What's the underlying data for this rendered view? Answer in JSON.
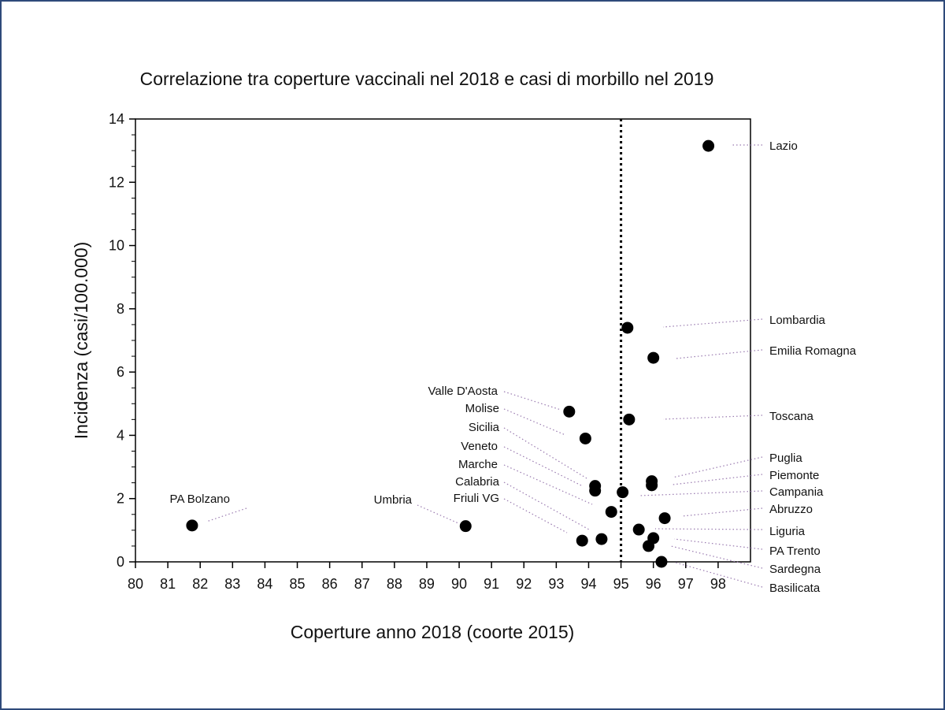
{
  "chart_data": {
    "type": "scatter",
    "title": "Correlazione tra coperture vaccinali nel 2018 e casi di morbillo nel 2019",
    "xlabel": "Coperture anno 2018 (coorte 2015)",
    "ylabel": "Incidenza (casi/100.000)",
    "xlim": [
      80,
      99
    ],
    "ylim": [
      0,
      14
    ],
    "xticks": [
      80,
      81,
      82,
      83,
      84,
      85,
      86,
      87,
      88,
      89,
      90,
      91,
      92,
      93,
      94,
      95,
      96,
      97,
      98
    ],
    "yticks": [
      0,
      2,
      4,
      6,
      8,
      10,
      12,
      14
    ],
    "threshold_x": 95,
    "points": [
      {
        "region": "Lazio",
        "x": 97.7,
        "y": 13.15,
        "side": "right"
      },
      {
        "region": "Lombardia",
        "x": 95.2,
        "y": 7.4,
        "side": "right"
      },
      {
        "region": "Emilia Romagna",
        "x": 96.0,
        "y": 6.45,
        "side": "right"
      },
      {
        "region": "Toscana",
        "x": 95.25,
        "y": 4.5,
        "side": "right"
      },
      {
        "region": "Puglia",
        "x": 95.95,
        "y": 2.55,
        "side": "right"
      },
      {
        "region": "Piemonte",
        "x": 95.95,
        "y": 2.42,
        "side": "right"
      },
      {
        "region": "Campania",
        "x": 95.05,
        "y": 2.2,
        "side": "right"
      },
      {
        "region": "Abruzzo",
        "x": 96.35,
        "y": 1.38,
        "side": "right"
      },
      {
        "region": "Liguria",
        "x": 95.55,
        "y": 1.02,
        "side": "right"
      },
      {
        "region": "PA Trento",
        "x": 96.0,
        "y": 0.75,
        "side": "right"
      },
      {
        "region": "Sardegna",
        "x": 95.85,
        "y": 0.5,
        "side": "right"
      },
      {
        "region": "Basilicata",
        "x": 96.25,
        "y": 0.0,
        "side": "right"
      },
      {
        "region": "Valle D'Aosta",
        "x": 93.4,
        "y": 4.75,
        "side": "left"
      },
      {
        "region": "Molise",
        "x": 93.9,
        "y": 3.9,
        "side": "left"
      },
      {
        "region": "Sicilia",
        "x": 94.2,
        "y": 2.4,
        "side": "left"
      },
      {
        "region": "Veneto",
        "x": 94.2,
        "y": 2.25,
        "side": "left"
      },
      {
        "region": "Marche",
        "x": 94.7,
        "y": 1.58,
        "side": "left"
      },
      {
        "region": "Calabria",
        "x": 94.4,
        "y": 0.72,
        "side": "left"
      },
      {
        "region": "Friuli VG",
        "x": 93.8,
        "y": 0.67,
        "side": "left"
      },
      {
        "region": "Umbria",
        "x": 90.2,
        "y": 1.13,
        "side": "left"
      },
      {
        "region": "PA Bolzano",
        "x": 81.75,
        "y": 1.15,
        "side": "left"
      }
    ]
  }
}
